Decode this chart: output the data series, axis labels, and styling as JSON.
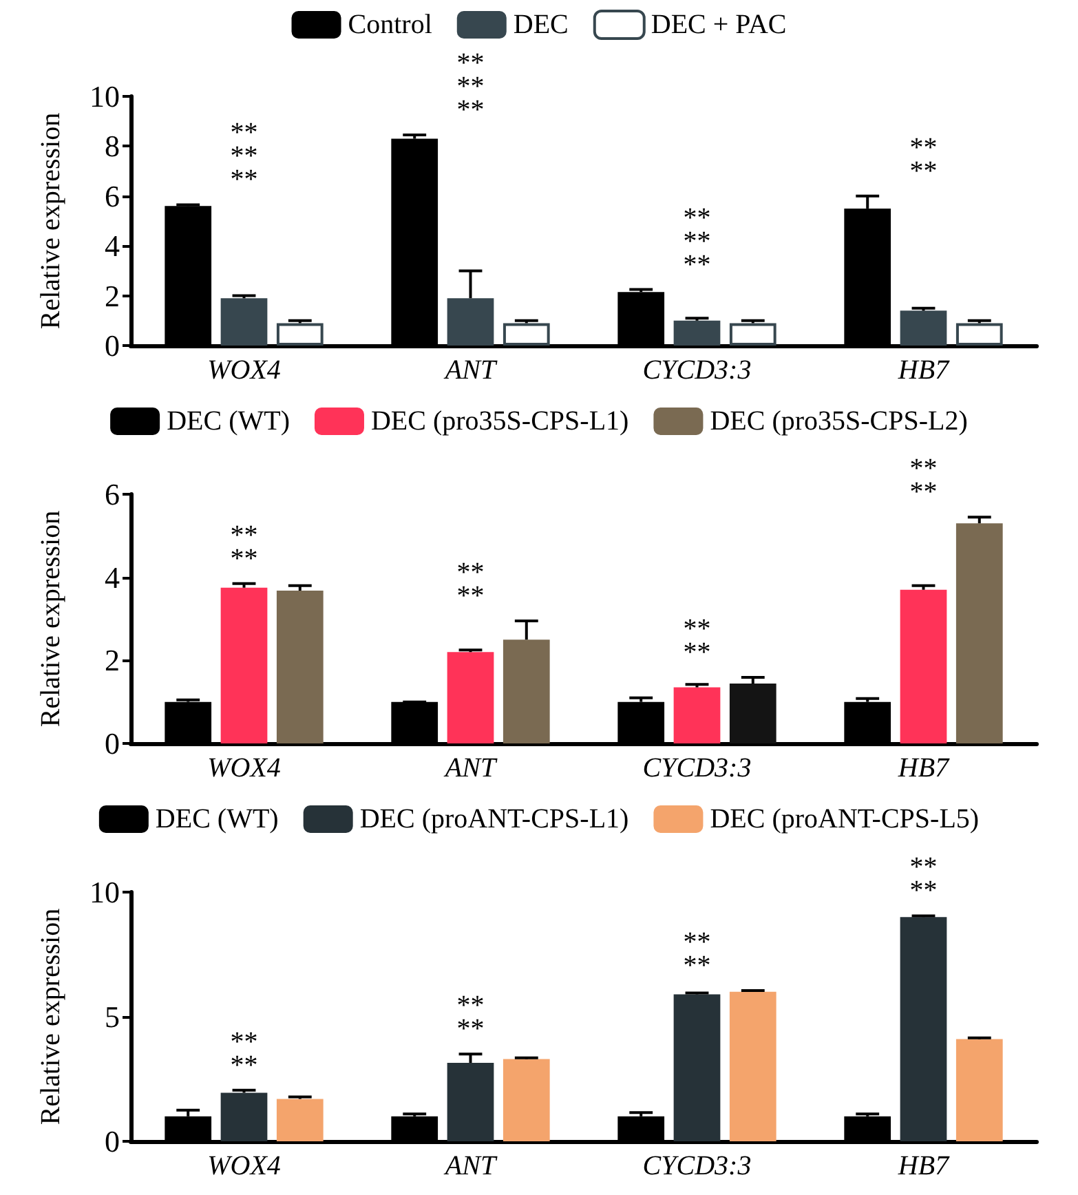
{
  "chart_data": [
    {
      "type": "bar",
      "ylabel": "Relative expression",
      "categories": [
        "WOX4",
        "ANT",
        "CYCD3:3",
        "HB7"
      ],
      "ylim": [
        0,
        10
      ],
      "yticks": [
        0,
        2,
        4,
        6,
        8,
        10
      ],
      "grid": false,
      "legend": "top",
      "series": [
        {
          "name": "Control",
          "color": "#000000",
          "values": [
            5.6,
            8.3,
            2.15,
            5.5
          ],
          "errors": [
            [
              5.6,
              5.65
            ],
            [
              8.3,
              8.45
            ],
            [
              2.15,
              2.25
            ],
            [
              5.5,
              6.0
            ]
          ]
        },
        {
          "name": "DEC",
          "color": "#37474f",
          "values": [
            1.9,
            1.9,
            1.0,
            1.4
          ],
          "errors": [
            [
              1.9,
              2.0
            ],
            [
              1.9,
              3.0
            ],
            [
              1.0,
              1.1
            ],
            [
              1.4,
              1.5
            ]
          ]
        },
        {
          "name": "DEC + PAC",
          "color": "#ffffff",
          "values": [
            0.9,
            0.9,
            0.9,
            0.9
          ],
          "errors": [
            [
              0.9,
              1.0
            ],
            [
              0.9,
              1.0
            ],
            [
              0.9,
              1.0
            ],
            [
              0.9,
              1.0
            ]
          ]
        }
      ],
      "annotations": [
        "**",
        "**",
        "**",
        "**",
        "**",
        "**",
        "**",
        "**",
        "**",
        "**",
        "**"
      ]
    },
    {
      "type": "bar",
      "ylabel": "Relative expression",
      "categories": [
        "WOX4",
        "ANT",
        "CYCD3:3",
        "HB7"
      ],
      "ylim": [
        0,
        6
      ],
      "yticks": [
        0,
        2,
        4,
        6
      ],
      "grid": false,
      "legend": "top",
      "series": [
        {
          "name": "DEC (WT)",
          "color": "#000000",
          "values": [
            1.0,
            1.0,
            1.0,
            1.0
          ],
          "errors": [
            [
              1.0,
              1.05
            ],
            [
              1.0,
              1.0
            ],
            [
              1.0,
              1.1
            ],
            [
              1.0,
              1.08
            ]
          ]
        },
        {
          "name": "DEC (pro35S-CPS-L1)",
          "color": "#ff3358",
          "values": [
            3.75,
            2.2,
            1.35,
            3.7
          ],
          "errors": [
            [
              3.75,
              3.85
            ],
            [
              2.2,
              2.25
            ],
            [
              1.35,
              1.42
            ],
            [
              3.7,
              3.8
            ]
          ]
        },
        {
          "name": "DEC (pro35S-CPS-L2)",
          "color": "#7a6a52",
          "colors": [
            "#7a6a52",
            "#7a6a52",
            "#141414",
            "#7a6a52"
          ],
          "values": [
            3.68,
            2.5,
            1.44,
            5.3
          ],
          "errors": [
            [
              3.68,
              3.8
            ],
            [
              2.5,
              2.95
            ],
            [
              1.44,
              1.59
            ],
            [
              5.3,
              5.45
            ]
          ]
        }
      ],
      "annotations": [
        "**",
        "**",
        "**",
        "**",
        "**",
        "**",
        "**",
        "**"
      ]
    },
    {
      "type": "bar",
      "ylabel": "Relative expression",
      "categories": [
        "WOX4",
        "ANT",
        "CYCD3:3",
        "HB7"
      ],
      "ylim": [
        0,
        10
      ],
      "yticks": [
        0,
        5,
        10
      ],
      "grid": false,
      "legend": "top",
      "series": [
        {
          "name": "DEC (WT)",
          "color": "#000000",
          "values": [
            1.0,
            1.0,
            1.0,
            1.0
          ],
          "errors": [
            [
              1.0,
              1.25
            ],
            [
              1.0,
              1.1
            ],
            [
              1.0,
              1.15
            ],
            [
              1.0,
              1.1
            ]
          ]
        },
        {
          "name": "DEC (proANT-CPS-L1)",
          "color": "#263238",
          "values": [
            1.95,
            3.15,
            5.9,
            9.0
          ],
          "errors": [
            [
              1.95,
              2.05
            ],
            [
              3.15,
              3.5
            ],
            [
              5.9,
              5.95
            ],
            [
              9.0,
              9.05
            ]
          ]
        },
        {
          "name": "DEC (proANT-CPS-L5)",
          "color": "#f4a46c",
          "values": [
            1.7,
            3.3,
            6.0,
            4.1
          ],
          "errors": [
            [
              1.7,
              1.78
            ],
            [
              3.3,
              3.35
            ],
            [
              6.0,
              6.05
            ],
            [
              4.1,
              4.15
            ]
          ]
        }
      ],
      "annotations": [
        "**",
        "**",
        "**",
        "**",
        "**",
        "**",
        "**",
        "**"
      ]
    }
  ]
}
